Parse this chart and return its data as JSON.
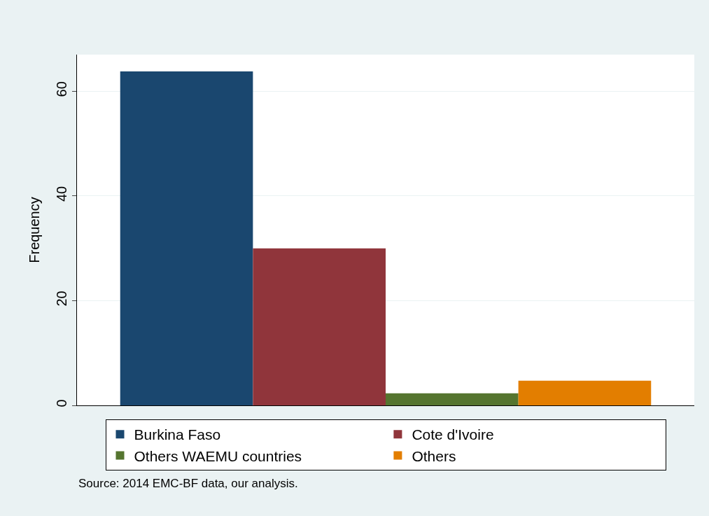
{
  "chart_data": {
    "type": "bar",
    "ylabel": "Frequency",
    "categories": [
      null
    ],
    "series": [
      {
        "name": "Burkina Faso",
        "color": "#1a476f",
        "values": [
          63.8
        ]
      },
      {
        "name": "Cote d'Ivoire",
        "color": "#90353b",
        "values": [
          30
        ]
      },
      {
        "name": "Others WAEMU countries",
        "color": "#55752f",
        "values": [
          2.3
        ]
      },
      {
        "name": "Others",
        "color": "#e37e00",
        "values": [
          4.7
        ]
      }
    ],
    "ylim": [
      0,
      67
    ],
    "yticks": [
      0,
      20,
      40,
      60
    ],
    "grid": "y",
    "legend": "bottom",
    "annotations": [
      "Source: 2014 EMC-BF data, our analysis."
    ]
  }
}
